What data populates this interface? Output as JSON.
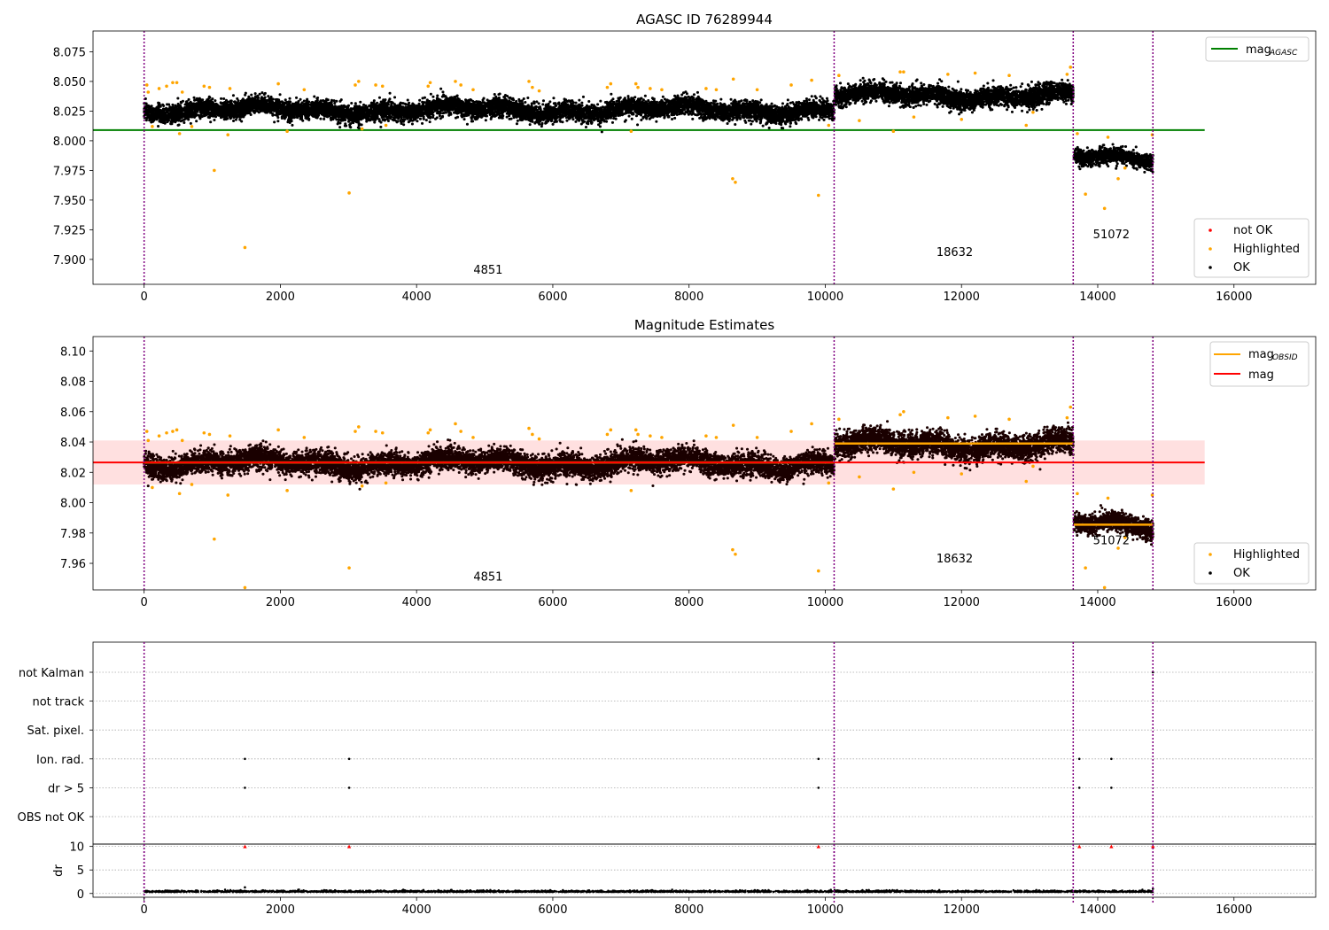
{
  "chart_data": [
    {
      "type": "scatter",
      "title": "AGASC ID 76289944",
      "xlim": [
        -750,
        17200
      ],
      "ylim": [
        7.879,
        8.0925
      ],
      "xticks": [
        0,
        2000,
        4000,
        6000,
        8000,
        10000,
        12000,
        14000,
        16000
      ],
      "yticks": [
        7.9,
        7.925,
        7.95,
        7.975,
        8.0,
        8.025,
        8.05,
        8.075
      ],
      "ytick_labels": [
        "7.900",
        "7.925",
        "7.950",
        "7.975",
        "8.000",
        "8.025",
        "8.050",
        "8.075"
      ],
      "grid": false,
      "legend_upper": {
        "placement": "upper right",
        "entries": [
          {
            "label_main": "mag",
            "label_sub": "AGASC",
            "color": "#008000",
            "kind": "line"
          }
        ]
      },
      "legend_lower": {
        "placement": "lower right",
        "entries": [
          {
            "label": "not OK",
            "color": "#ff0000"
          },
          {
            "label": "Highlighted",
            "color": "#ffa500"
          },
          {
            "label": "OK",
            "color": "#000000"
          }
        ]
      },
      "mag_agasc": {
        "value": 8.009,
        "x_range": [
          -750,
          15570
        ],
        "color": "#008000"
      },
      "obsid_boundaries": [
        0,
        10130,
        13640,
        14810
      ],
      "obs_labels": [
        {
          "text": "4851",
          "x": 5050,
          "y": 7.888
        },
        {
          "text": "18632",
          "x": 11900,
          "y": 7.903
        },
        {
          "text": "51072",
          "x": 14200,
          "y": 7.918
        }
      ],
      "series": [
        {
          "name": "OK",
          "color": "#000000",
          "segments": [
            {
              "x": [
                0,
                10130
              ],
              "center": 8.026,
              "spread": 0.006
            },
            {
              "x": [
                10140,
                13640
              ],
              "center": 8.038,
              "spread": 0.0065
            },
            {
              "x": [
                13650,
                14810
              ],
              "center": 7.985,
              "spread": 0.005
            }
          ]
        },
        {
          "name": "Highlighted",
          "color": "#ffa500",
          "points": [
            [
              40,
              8.047
            ],
            [
              60,
              8.041
            ],
            [
              120,
              8.012
            ],
            [
              220,
              8.044
            ],
            [
              330,
              8.046
            ],
            [
              420,
              8.049
            ],
            [
              480,
              8.049
            ],
            [
              520,
              8.006
            ],
            [
              560,
              8.041
            ],
            [
              700,
              8.012
            ],
            [
              880,
              8.046
            ],
            [
              960,
              8.045
            ],
            [
              1030,
              7.975
            ],
            [
              1230,
              8.005
            ],
            [
              1260,
              8.044
            ],
            [
              1480,
              7.91
            ],
            [
              1970,
              8.048
            ],
            [
              2100,
              8.008
            ],
            [
              2350,
              8.043
            ],
            [
              3010,
              7.956
            ],
            [
              3100,
              8.047
            ],
            [
              3150,
              8.05
            ],
            [
              3200,
              8.01
            ],
            [
              3400,
              8.047
            ],
            [
              3500,
              8.046
            ],
            [
              3550,
              8.013
            ],
            [
              4170,
              8.046
            ],
            [
              4200,
              8.049
            ],
            [
              4570,
              8.05
            ],
            [
              4650,
              8.047
            ],
            [
              4830,
              8.043
            ],
            [
              5650,
              8.05
            ],
            [
              5700,
              8.045
            ],
            [
              5800,
              8.042
            ],
            [
              6800,
              8.045
            ],
            [
              6850,
              8.048
            ],
            [
              7150,
              8.008
            ],
            [
              7220,
              8.048
            ],
            [
              7250,
              8.045
            ],
            [
              7430,
              8.044
            ],
            [
              7600,
              8.043
            ],
            [
              8250,
              8.044
            ],
            [
              8400,
              8.043
            ],
            [
              8650,
              8.052
            ],
            [
              8640,
              7.968
            ],
            [
              8680,
              7.965
            ],
            [
              9000,
              8.043
            ],
            [
              9500,
              8.047
            ],
            [
              9800,
              8.051
            ],
            [
              9900,
              7.954
            ],
            [
              10050,
              8.013
            ],
            [
              10200,
              8.055
            ],
            [
              10500,
              8.017
            ],
            [
              11000,
              8.008
            ],
            [
              11100,
              8.058
            ],
            [
              11150,
              8.058
            ],
            [
              11300,
              8.02
            ],
            [
              11800,
              8.056
            ],
            [
              12000,
              8.018
            ],
            [
              12200,
              8.057
            ],
            [
              12700,
              8.055
            ],
            [
              12950,
              8.013
            ],
            [
              13050,
              8.024
            ],
            [
              13550,
              8.056
            ],
            [
              13600,
              8.062
            ],
            [
              13700,
              8.006
            ],
            [
              13820,
              7.955
            ],
            [
              14100,
              7.943
            ],
            [
              14150,
              8.003
            ],
            [
              14300,
              7.968
            ],
            [
              14400,
              7.977
            ],
            [
              14800,
              8.005
            ]
          ]
        }
      ]
    },
    {
      "type": "scatter",
      "title": "Magnitude Estimates",
      "xlim": [
        -750,
        17200
      ],
      "ylim": [
        7.9425,
        8.1095
      ],
      "xticks": [
        0,
        2000,
        4000,
        6000,
        8000,
        10000,
        12000,
        14000,
        16000
      ],
      "yticks": [
        7.96,
        7.98,
        8.0,
        8.02,
        8.04,
        8.06,
        8.08,
        8.1
      ],
      "ytick_labels": [
        "7.96",
        "7.98",
        "8.00",
        "8.02",
        "8.04",
        "8.06",
        "8.08",
        "8.10"
      ],
      "grid": false,
      "legend_upper": {
        "placement": "upper right",
        "entries": [
          {
            "label_main": "mag",
            "label_sub": "OBSID",
            "color": "#ffa500",
            "kind": "line"
          },
          {
            "label_main": "mag",
            "label_sub": "",
            "color": "#ff0000",
            "kind": "line"
          }
        ]
      },
      "legend_lower": {
        "placement": "lower right",
        "entries": [
          {
            "label": "Highlighted",
            "color": "#ffa500"
          },
          {
            "label": "OK",
            "color": "#000000"
          }
        ]
      },
      "mag": {
        "value": 8.0265,
        "band": [
          8.012,
          8.041
        ],
        "x_range": [
          -750,
          15570
        ],
        "color": "#ff0000"
      },
      "mag_obsid": [
        {
          "x": [
            0,
            10130
          ],
          "value": 8.0265
        },
        {
          "x": [
            10140,
            13640
          ],
          "value": 8.039
        },
        {
          "x": [
            13650,
            14810
          ],
          "value": 7.9855
        }
      ],
      "obsid_boundaries": [
        0,
        10130,
        13640,
        14810
      ],
      "obs_labels": [
        {
          "text": "4851",
          "x": 5050,
          "y": 7.9485
        },
        {
          "text": "18632",
          "x": 11900,
          "y": 7.9605
        },
        {
          "text": "51072",
          "x": 14200,
          "y": 7.9725
        }
      ],
      "series": [
        {
          "name": "OK",
          "color": "#1a0000",
          "segments": [
            {
              "x": [
                0,
                10130
              ],
              "center": 8.026,
              "spread": 0.006
            },
            {
              "x": [
                10140,
                13640
              ],
              "center": 8.038,
              "spread": 0.0065
            },
            {
              "x": [
                13650,
                14810
              ],
              "center": 7.985,
              "spread": 0.005
            }
          ]
        },
        {
          "name": "Highlighted",
          "color": "#ffa500",
          "points": [
            [
              40,
              8.047
            ],
            [
              60,
              8.041
            ],
            [
              120,
              8.01
            ],
            [
              220,
              8.044
            ],
            [
              330,
              8.046
            ],
            [
              420,
              8.047
            ],
            [
              480,
              8.048
            ],
            [
              520,
              8.006
            ],
            [
              560,
              8.041
            ],
            [
              700,
              8.012
            ],
            [
              880,
              8.046
            ],
            [
              960,
              8.045
            ],
            [
              1030,
              7.976
            ],
            [
              1230,
              8.005
            ],
            [
              1260,
              8.044
            ],
            [
              1480,
              7.944
            ],
            [
              1970,
              8.048
            ],
            [
              2100,
              8.008
            ],
            [
              2350,
              8.043
            ],
            [
              3010,
              7.957
            ],
            [
              3100,
              8.047
            ],
            [
              3150,
              8.05
            ],
            [
              3200,
              8.011
            ],
            [
              3400,
              8.047
            ],
            [
              3500,
              8.046
            ],
            [
              3550,
              8.013
            ],
            [
              4170,
              8.046
            ],
            [
              4200,
              8.048
            ],
            [
              4570,
              8.052
            ],
            [
              4650,
              8.047
            ],
            [
              4830,
              8.043
            ],
            [
              5650,
              8.049
            ],
            [
              5700,
              8.045
            ],
            [
              5800,
              8.042
            ],
            [
              6800,
              8.045
            ],
            [
              6850,
              8.048
            ],
            [
              7150,
              8.008
            ],
            [
              7220,
              8.048
            ],
            [
              7250,
              8.045
            ],
            [
              7430,
              8.044
            ],
            [
              7600,
              8.043
            ],
            [
              8250,
              8.044
            ],
            [
              8400,
              8.043
            ],
            [
              8650,
              8.051
            ],
            [
              8640,
              7.969
            ],
            [
              8680,
              7.966
            ],
            [
              9000,
              8.043
            ],
            [
              9500,
              8.047
            ],
            [
              9800,
              8.052
            ],
            [
              9900,
              7.955
            ],
            [
              10050,
              8.013
            ],
            [
              10200,
              8.055
            ],
            [
              10500,
              8.017
            ],
            [
              11000,
              8.009
            ],
            [
              11100,
              8.058
            ],
            [
              11150,
              8.06
            ],
            [
              11300,
              8.02
            ],
            [
              11800,
              8.056
            ],
            [
              12000,
              8.019
            ],
            [
              12200,
              8.057
            ],
            [
              12700,
              8.055
            ],
            [
              12950,
              8.014
            ],
            [
              13050,
              8.024
            ],
            [
              13550,
              8.056
            ],
            [
              13600,
              8.063
            ],
            [
              13700,
              8.006
            ],
            [
              13820,
              7.957
            ],
            [
              14100,
              7.944
            ],
            [
              14150,
              8.003
            ],
            [
              14300,
              7.97
            ],
            [
              14400,
              7.977
            ],
            [
              14800,
              8.005
            ]
          ]
        }
      ]
    },
    {
      "type": "scatter",
      "title": "",
      "xlim": [
        -750,
        17200
      ],
      "xticks": [
        0,
        2000,
        4000,
        6000,
        8000,
        10000,
        12000,
        14000,
        16000
      ],
      "flag_rows": [
        "not Kalman",
        "not track",
        "Sat. pixel.",
        "Ion. rad.",
        "dr > 5",
        "OBS not OK"
      ],
      "flags": {
        "not Kalman": [
          14810
        ],
        "not track": [],
        "Sat. pixel.": [],
        "Ion. rad.": [
          1480,
          3010,
          9900,
          13730,
          14200
        ],
        "dr > 5": [
          1480,
          3010,
          9900,
          13730,
          14200
        ],
        "OBS not OK": []
      },
      "dr": {
        "ylabel": "dr",
        "yticks": [
          0,
          5,
          10
        ],
        "ylim": [
          -0.8,
          10.5
        ],
        "typical": 0.3,
        "outliers": [
          [
            1480,
            1.3
          ],
          [
            14810,
            1.0
          ]
        ],
        "clipped": [
          [
            1480,
            10
          ],
          [
            3010,
            10
          ],
          [
            9900,
            10
          ],
          [
            13730,
            10
          ],
          [
            14200,
            10
          ],
          [
            14810,
            10
          ]
        ],
        "clipped_color": "#ff0000"
      },
      "obsid_boundaries": [
        0,
        10130,
        13640,
        14810
      ],
      "grid": true
    }
  ]
}
